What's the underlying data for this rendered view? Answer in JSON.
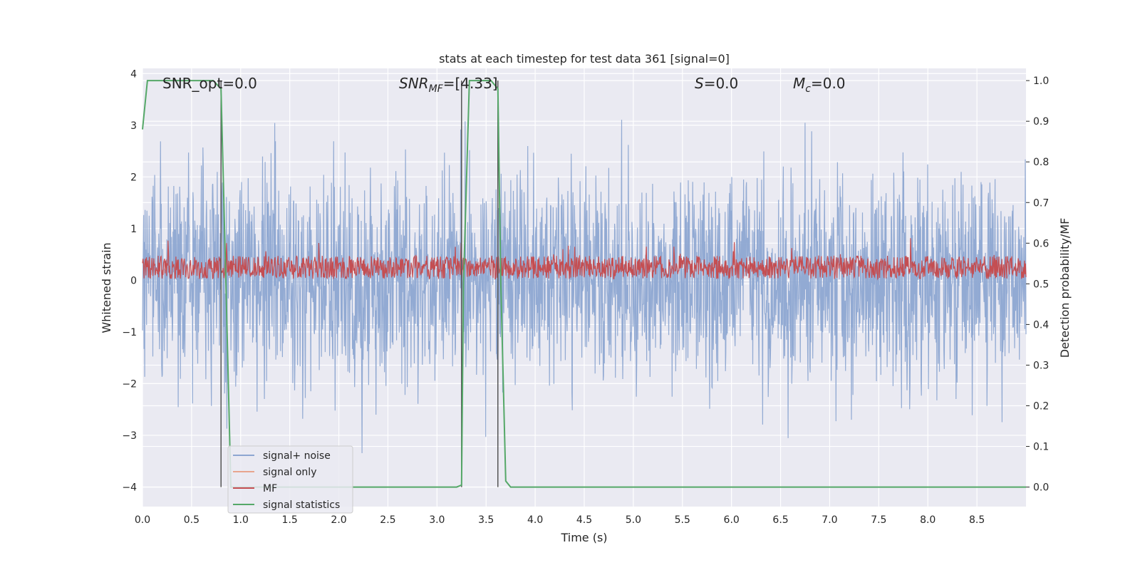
{
  "chart_data": {
    "type": "line",
    "title": "stats at each timestep for test data 361 [signal=0]",
    "xlabel": "Time (s)",
    "ylabel_left": "Whitened strain",
    "ylabel_right": "Detection probability/MF",
    "xlim": [
      0.0,
      9.0
    ],
    "ylim_left": [
      -4.38,
      4.1
    ],
    "ylim_right": [
      -0.048,
      1.03
    ],
    "x_ticks": [
      "0.0",
      "0.5",
      "1.0",
      "1.5",
      "2.0",
      "2.5",
      "3.0",
      "3.5",
      "4.0",
      "4.5",
      "5.0",
      "5.5",
      "6.0",
      "6.5",
      "7.0",
      "7.5",
      "8.0",
      "8.5"
    ],
    "y_ticks_left": [
      "−4",
      "−3",
      "−2",
      "−1",
      "0",
      "1",
      "2",
      "3",
      "4"
    ],
    "y_ticks_right": [
      "0.0",
      "0.1",
      "0.2",
      "0.3",
      "0.4",
      "0.5",
      "0.6",
      "0.7",
      "0.8",
      "0.9",
      "1.0"
    ],
    "grid": true,
    "legend_position": "lower-left",
    "annotations": {
      "snr_opt": "SNR_opt=0.0",
      "snr_mf": "SNR",
      "snr_mf_sub": "MF",
      "snr_mf_val": "=[4.33]",
      "s_sym": "S",
      "s_val": "=0.0",
      "mc_sym": "M",
      "mc_sub": "c",
      "mc_val": "=0.0"
    },
    "series": [
      {
        "name": "signal+ noise",
        "color": "#8da6d1",
        "axis": "left",
        "summary": "white noise between about -4.0 and 3.7 over 0 to 9 s"
      },
      {
        "name": "signal only",
        "color": "#e8a58e",
        "axis": "left",
        "values": []
      },
      {
        "name": "MF",
        "color": "#c44e52",
        "axis": "left",
        "summary": "noisy band mostly between 0.0 and 0.6, peaks near 0.95"
      },
      {
        "name": "signal statistics",
        "color": "#55a868",
        "axis": "right",
        "x": [
          0.0,
          0.05,
          0.1,
          0.5,
          0.72,
          0.8,
          0.85,
          0.9,
          1.0,
          3.2,
          3.25,
          3.27,
          3.33,
          3.55,
          3.62,
          3.65,
          3.7,
          3.75,
          9.0
        ],
        "values": [
          0.88,
          1.0,
          1.0,
          1.0,
          1.0,
          0.98,
          0.5,
          0.0,
          0.0,
          0.0,
          0.005,
          0.5,
          1.0,
          1.0,
          0.98,
          0.5,
          0.015,
          0.0,
          0.0
        ]
      }
    ],
    "vlines": [
      0.8,
      3.25,
      3.62
    ],
    "vline_color": "#555555"
  }
}
